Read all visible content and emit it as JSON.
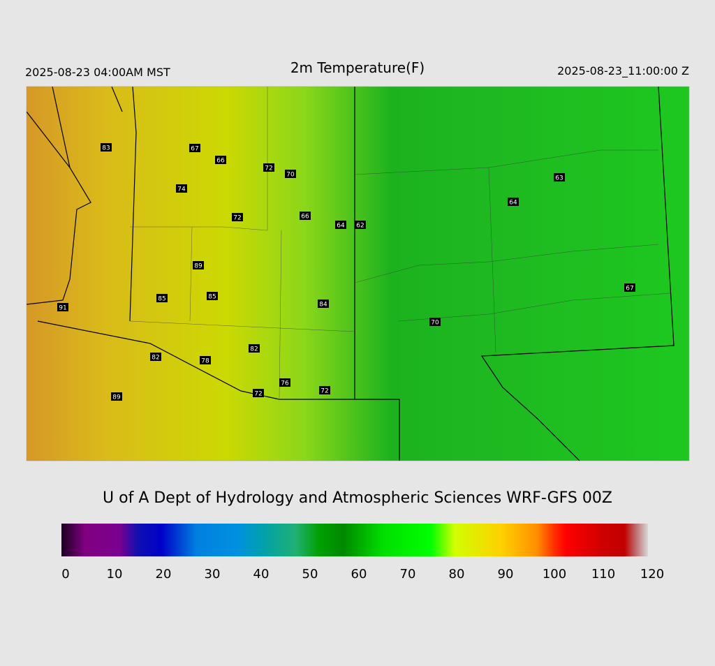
{
  "header": {
    "left": "2025-08-23 04:00AM MST",
    "title": "2m Temperature(F)",
    "right": "2025-08-23_11:00:00 Z"
  },
  "stations": [
    83,
    67,
    66,
    72,
    70,
    74,
    72,
    66,
    64,
    62,
    63,
    64,
    89,
    85,
    85,
    84,
    91,
    67,
    70,
    82,
    82,
    78,
    76,
    72,
    72,
    89
  ],
  "footer": "U of A Dept of Hydrology and Atmospheric Sciences WRF-GFS 00Z",
  "colorbar": {
    "lim": [
      0,
      120
    ],
    "ticks": [
      0,
      10,
      20,
      30,
      40,
      50,
      60,
      70,
      80,
      90,
      100,
      110,
      120
    ]
  }
}
